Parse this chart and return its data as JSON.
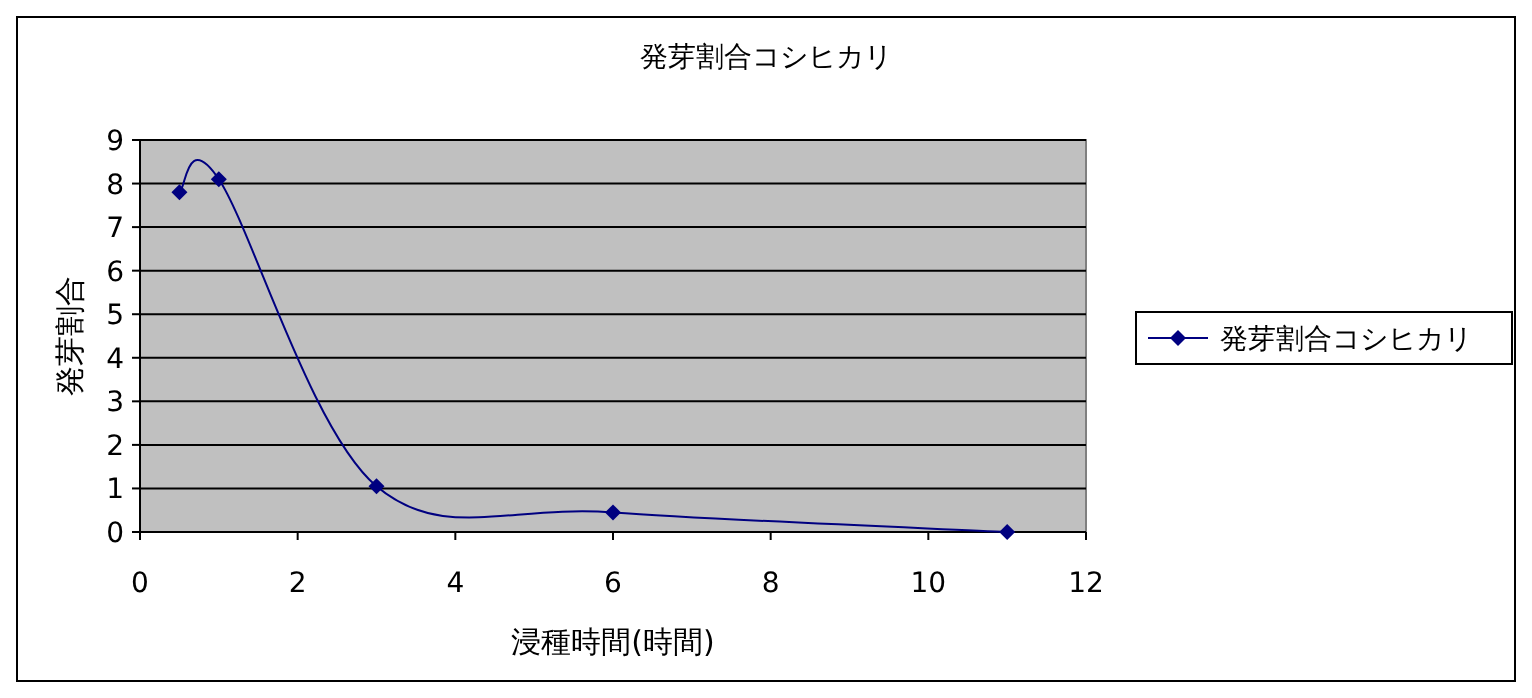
{
  "chart_data": {
    "type": "line",
    "title": "発芽割合コシヒカリ",
    "xlabel": "浸種時間(時間)",
    "ylabel": "発芽割合",
    "x": [
      0.5,
      1,
      3,
      6,
      11
    ],
    "series": [
      {
        "name": "発芽割合コシヒカリ",
        "color": "#000080",
        "values": [
          7.8,
          8.1,
          1.05,
          0.45,
          0
        ]
      }
    ],
    "xlim": [
      0,
      12
    ],
    "xticks": [
      0,
      2,
      4,
      6,
      8,
      10,
      12
    ],
    "ylim": [
      0,
      9
    ],
    "yticks": [
      0,
      1,
      2,
      3,
      4,
      5,
      6,
      7,
      8,
      9
    ],
    "grid": "y",
    "legend": "right",
    "marker": "diamond",
    "line_style": "solid"
  }
}
